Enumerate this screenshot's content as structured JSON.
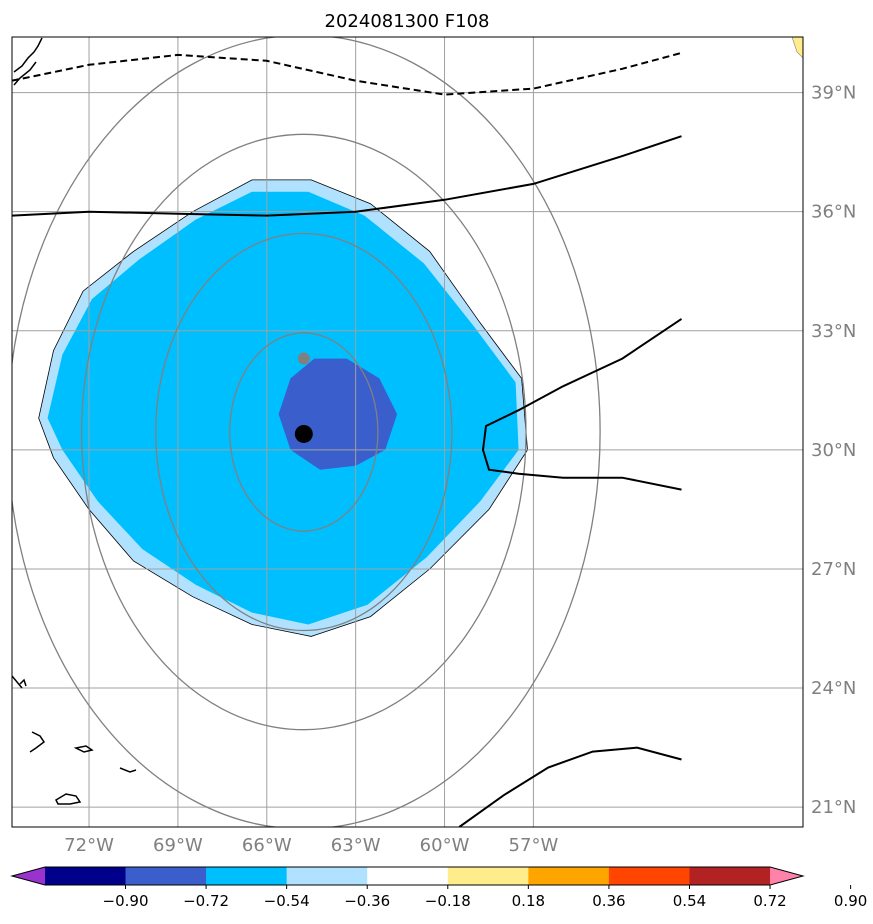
{
  "chart_data": {
    "type": "map",
    "title": "2024081300 F108",
    "map_extent": {
      "lon": [
        -74.6,
        -47.9
      ],
      "lat": [
        20.5,
        40.4
      ]
    },
    "lon_ticks": [
      {
        "value": -72,
        "label": "72°W"
      },
      {
        "value": -69,
        "label": "69°W"
      },
      {
        "value": -66,
        "label": "66°W"
      },
      {
        "value": -63,
        "label": "63°W"
      },
      {
        "value": -60,
        "label": "60°W"
      },
      {
        "value": -57,
        "label": "57°W"
      }
    ],
    "lat_ticks": [
      {
        "value": 21,
        "label": "21°N"
      },
      {
        "value": 24,
        "label": "24°N"
      },
      {
        "value": 27,
        "label": "27°N"
      },
      {
        "value": 30,
        "label": "30°N"
      },
      {
        "value": 33,
        "label": "33°N"
      },
      {
        "value": 36,
        "label": "36°N"
      },
      {
        "value": 39,
        "label": "39°N"
      }
    ],
    "grid": true,
    "colorbar": {
      "orientation": "horizontal",
      "extend": "both",
      "levels": [
        -0.9,
        -0.72,
        -0.54,
        -0.36,
        -0.18,
        0.18,
        0.36,
        0.54,
        0.72,
        0.9
      ],
      "tick_labels": [
        "−0.90",
        "−0.72",
        "−0.54",
        "−0.36",
        "−0.18",
        "0.18",
        "0.36",
        "0.54",
        "0.72",
        "0.90"
      ],
      "colors": [
        "#9a32cd",
        "#00008b",
        "#3a5fcd",
        "#00bfff",
        "#b0e2ff",
        "#ffffff",
        "#ffec8b",
        "#ffa500",
        "#ff4500",
        "#b22222",
        "#ff82ab"
      ]
    },
    "shaded_regions": [
      {
        "level_range": [
          -0.36,
          -0.18
        ],
        "color": "#b0e2ff",
        "outline": [
          [
            -73.7,
            30.8
          ],
          [
            -73.2,
            32.5
          ],
          [
            -72.2,
            34.0
          ],
          [
            -70.5,
            35.0
          ],
          [
            -68.5,
            36.0
          ],
          [
            -66.5,
            36.8
          ],
          [
            -64.5,
            36.8
          ],
          [
            -62.5,
            36.2
          ],
          [
            -60.5,
            35.0
          ],
          [
            -58.8,
            33.2
          ],
          [
            -57.4,
            31.8
          ],
          [
            -57.2,
            30.0
          ],
          [
            -58.5,
            28.5
          ],
          [
            -60.5,
            27.0
          ],
          [
            -62.5,
            25.8
          ],
          [
            -64.5,
            25.3
          ],
          [
            -66.5,
            25.6
          ],
          [
            -68.5,
            26.3
          ],
          [
            -70.5,
            27.2
          ],
          [
            -72.0,
            28.5
          ],
          [
            -73.2,
            29.8
          ]
        ]
      },
      {
        "level_range": [
          -0.54,
          -0.36
        ],
        "color": "#00bfff",
        "outline": [
          [
            -73.4,
            30.8
          ],
          [
            -72.9,
            32.4
          ],
          [
            -71.9,
            33.8
          ],
          [
            -70.3,
            34.8
          ],
          [
            -68.4,
            35.8
          ],
          [
            -66.5,
            36.5
          ],
          [
            -64.6,
            36.5
          ],
          [
            -62.7,
            35.9
          ],
          [
            -60.7,
            34.7
          ],
          [
            -59.0,
            33.1
          ],
          [
            -57.6,
            31.7
          ],
          [
            -57.5,
            30.0
          ],
          [
            -58.8,
            28.7
          ],
          [
            -60.6,
            27.3
          ],
          [
            -62.6,
            26.1
          ],
          [
            -64.6,
            25.6
          ],
          [
            -66.5,
            25.9
          ],
          [
            -68.4,
            26.6
          ],
          [
            -70.2,
            27.5
          ],
          [
            -71.7,
            28.7
          ],
          [
            -72.9,
            30.0
          ]
        ]
      },
      {
        "level_range": [
          -0.72,
          -0.54
        ],
        "color": "#3a5fcd",
        "outline": [
          [
            -65.6,
            30.9
          ],
          [
            -65.2,
            31.8
          ],
          [
            -64.4,
            32.3
          ],
          [
            -63.3,
            32.3
          ],
          [
            -62.2,
            31.8
          ],
          [
            -61.6,
            30.9
          ],
          [
            -62.0,
            30.0
          ],
          [
            -63.0,
            29.6
          ],
          [
            -64.2,
            29.5
          ],
          [
            -65.2,
            30.0
          ]
        ]
      }
    ],
    "contours": [
      {
        "style": "dashed",
        "points": [
          [
            -74.6,
            39.3
          ],
          [
            -72.0,
            39.7
          ],
          [
            -69.0,
            39.95
          ],
          [
            -66.0,
            39.8
          ],
          [
            -63.0,
            39.3
          ],
          [
            -60.0,
            38.95
          ],
          [
            -57.0,
            39.1
          ],
          [
            -54.0,
            39.6
          ],
          [
            -52.0,
            40.0
          ]
        ]
      },
      {
        "style": "solid",
        "points": [
          [
            -74.6,
            35.9
          ],
          [
            -72.0,
            36.0
          ],
          [
            -69.0,
            35.95
          ],
          [
            -66.0,
            35.9
          ],
          [
            -63.0,
            36.0
          ],
          [
            -60.0,
            36.3
          ],
          [
            -57.0,
            36.7
          ],
          [
            -54.0,
            37.4
          ],
          [
            -52.0,
            37.9
          ]
        ]
      },
      {
        "style": "solid",
        "points": [
          [
            -52.0,
            33.3
          ],
          [
            -54.0,
            32.3
          ],
          [
            -56.0,
            31.6
          ],
          [
            -57.5,
            31.0
          ],
          [
            -58.6,
            30.6
          ],
          [
            -58.7,
            30.0
          ],
          [
            -58.5,
            29.5
          ],
          [
            -57.5,
            29.4
          ],
          [
            -56.0,
            29.3
          ],
          [
            -54.0,
            29.3
          ],
          [
            -52.0,
            29.0
          ]
        ]
      },
      {
        "style": "solid",
        "points": [
          [
            -59.5,
            20.5
          ],
          [
            -58.0,
            21.3
          ],
          [
            -56.5,
            22.0
          ],
          [
            -55.0,
            22.4
          ],
          [
            -53.5,
            22.5
          ],
          [
            -52.0,
            22.2
          ]
        ]
      }
    ],
    "range_rings": {
      "center": [
        -64.75,
        30.45
      ],
      "radii_deg": [
        2.5,
        5.0,
        7.5,
        10.0
      ]
    },
    "markers": [
      {
        "lon": -64.75,
        "lat": 30.4,
        "color": "#000000",
        "size": "large"
      },
      {
        "lon": -64.75,
        "lat": 32.3,
        "color": "#808080",
        "size": "small"
      }
    ]
  }
}
